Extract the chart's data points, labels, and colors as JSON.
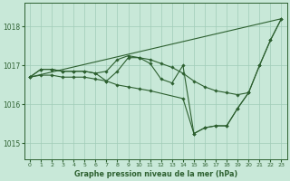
{
  "title": "Graphe pression niveau de la mer (hPa)",
  "background_color": "#c8e8d8",
  "grid_color": "#a0ccb8",
  "line_color": "#2d6030",
  "xlim": [
    -0.5,
    23.5
  ],
  "ylim": [
    1014.6,
    1018.6
  ],
  "yticks": [
    1015,
    1016,
    1017,
    1018
  ],
  "xticks": [
    0,
    1,
    2,
    3,
    4,
    5,
    6,
    7,
    8,
    9,
    10,
    11,
    12,
    13,
    14,
    15,
    16,
    17,
    18,
    19,
    20,
    21,
    22,
    23
  ],
  "line1_x": [
    0,
    1,
    2,
    3,
    4,
    5,
    6,
    7,
    8,
    9,
    10,
    11,
    12,
    13,
    14,
    15,
    16,
    17,
    18,
    19,
    20,
    21,
    22,
    23
  ],
  "line1_y": [
    1016.7,
    1016.9,
    1016.9,
    1016.85,
    1016.85,
    1016.85,
    1016.8,
    1016.85,
    1017.15,
    1017.25,
    1017.2,
    1017.05,
    1016.65,
    1016.55,
    1017.0,
    1015.25,
    1015.4,
    1015.45,
    1015.45,
    1015.9,
    1016.3,
    1017.0,
    1017.65,
    1018.2
  ],
  "line2_x": [
    0,
    1,
    2,
    3,
    4,
    5,
    6,
    7,
    8,
    9,
    10,
    11,
    12,
    13,
    14,
    15,
    16,
    17,
    18,
    19,
    20,
    21,
    22,
    23
  ],
  "line2_y": [
    1016.7,
    1016.9,
    1016.9,
    1016.85,
    1016.85,
    1016.85,
    1016.8,
    1016.6,
    1016.85,
    1017.2,
    1017.2,
    1017.15,
    1017.05,
    1016.95,
    1016.8,
    1016.6,
    1016.45,
    1016.35,
    1016.3,
    1016.25,
    1016.3,
    1017.0,
    1017.65,
    1018.2
  ],
  "line3_x": [
    0,
    23
  ],
  "line3_y": [
    1016.7,
    1018.2
  ],
  "line4_x": [
    0,
    1,
    2,
    3,
    4,
    5,
    6,
    7,
    8,
    9,
    10,
    11,
    14,
    15,
    16,
    17,
    18,
    19,
    20
  ],
  "line4_y": [
    1016.7,
    1016.75,
    1016.75,
    1016.7,
    1016.7,
    1016.7,
    1016.65,
    1016.6,
    1016.5,
    1016.45,
    1016.4,
    1016.35,
    1016.15,
    1015.25,
    1015.4,
    1015.45,
    1015.45,
    1015.9,
    1016.3
  ]
}
